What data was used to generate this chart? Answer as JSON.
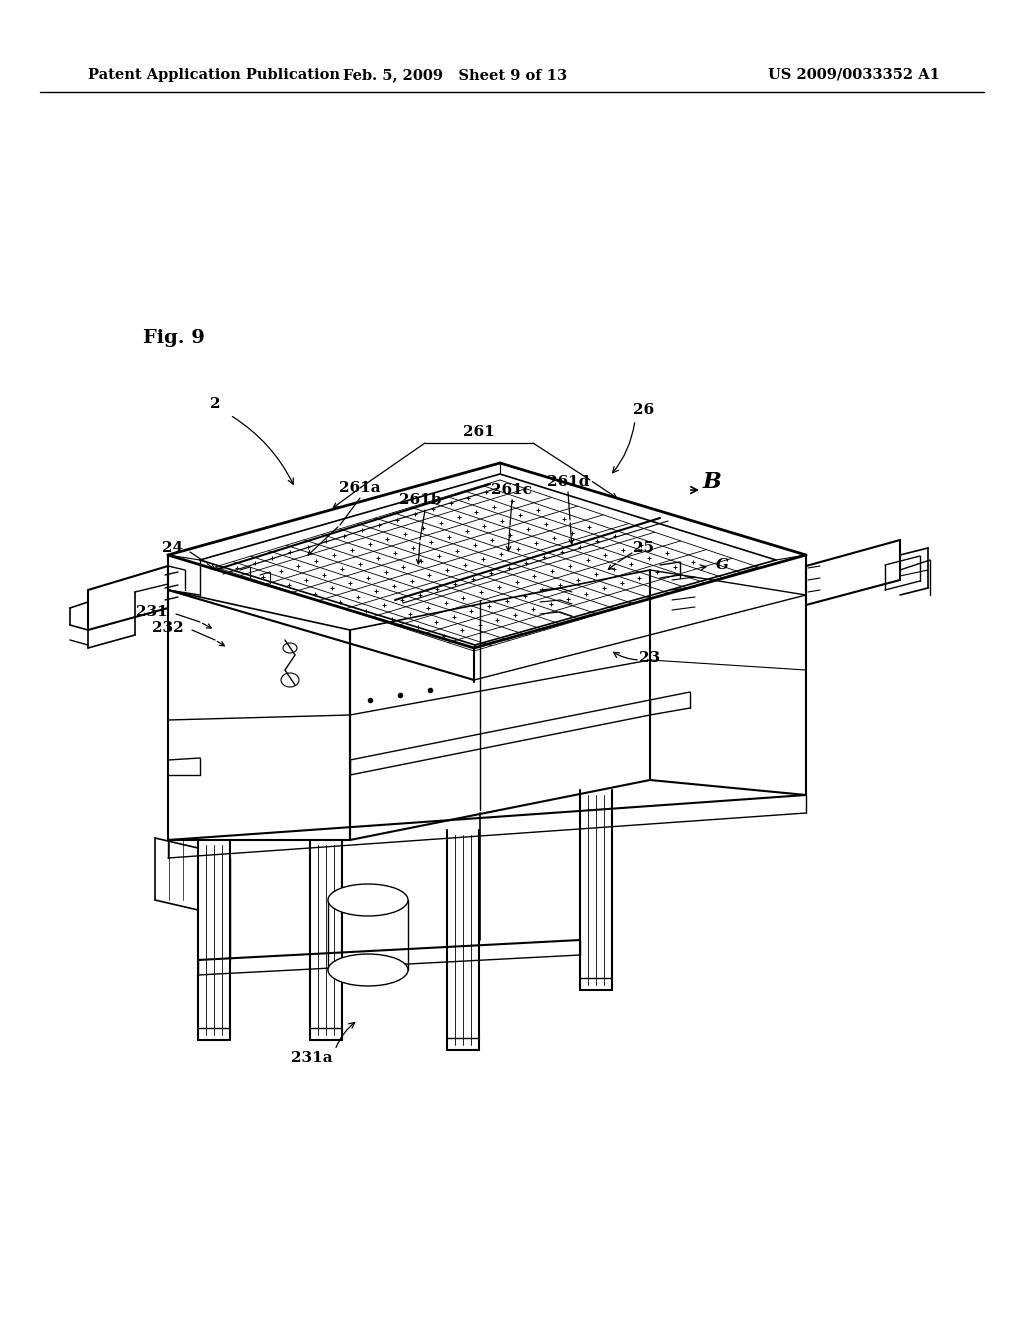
{
  "bg": "#ffffff",
  "lc": "#000000",
  "header_left": "Patent Application Publication",
  "header_mid": "Feb. 5, 2009   Sheet 9 of 13",
  "header_right": "US 2009/0033352 A1",
  "fig_label": "Fig. 9"
}
